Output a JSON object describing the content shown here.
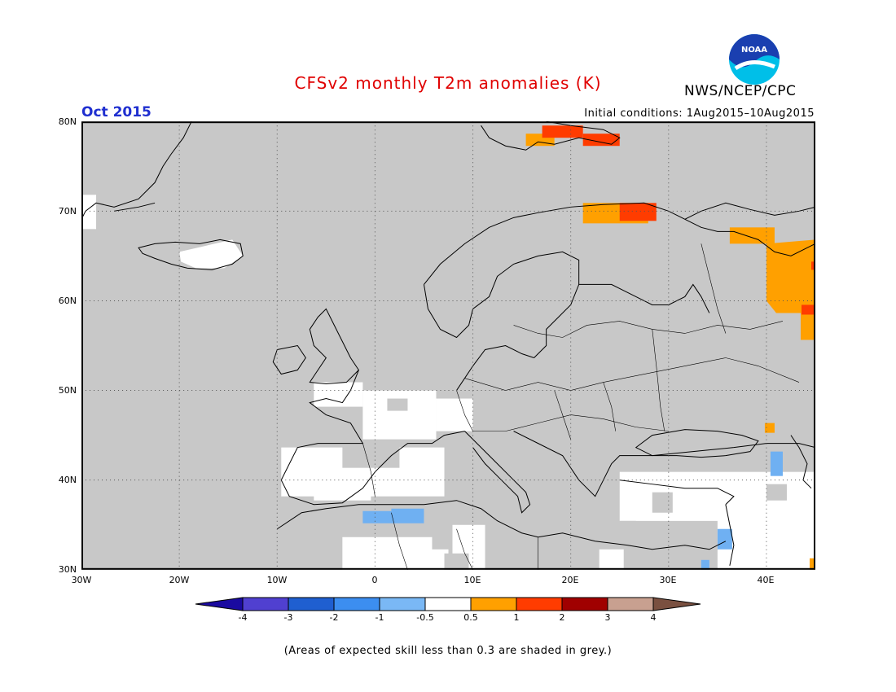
{
  "title": "CFSv2 monthly T2m anomalies (K)",
  "valid_month": "Oct 2015",
  "initial_conditions": "Initial conditions: 1Aug2015–10Aug2015",
  "agency": "NWS/NCEP/CPC",
  "logo": {
    "text": "NOAA",
    "colors": [
      "#1a3fb0",
      "#00bfe8",
      "#ffffff"
    ]
  },
  "map": {
    "lat_labels": [
      "80N",
      "70N",
      "60N",
      "50N",
      "40N",
      "30N"
    ],
    "lon_labels": [
      "30W",
      "20W",
      "10W",
      "0",
      "10E",
      "20E",
      "30E",
      "40E"
    ],
    "background_color": "#c8c8c8",
    "anomaly_colors": {
      "near_zero": "#ffffff",
      "cool_-1": "#6fb0f2",
      "warm_0.5": "#ffa000",
      "warm_1": "#ff3c00"
    }
  },
  "colorbar": {
    "tick_labels": [
      "-4",
      "-3",
      "-2",
      "-1",
      "-0.5",
      "0.5",
      "1",
      "2",
      "3",
      "4"
    ],
    "colors": [
      "#1a0aa0",
      "#5040d0",
      "#1f5fd0",
      "#3c8ef0",
      "#7ab8f5",
      "#ffffff",
      "#ffa000",
      "#ff3c00",
      "#a00000",
      "#c8a090",
      "#7a5040"
    ]
  },
  "footnote": "(Areas of expected skill less than 0.3 are shaded in grey.)"
}
